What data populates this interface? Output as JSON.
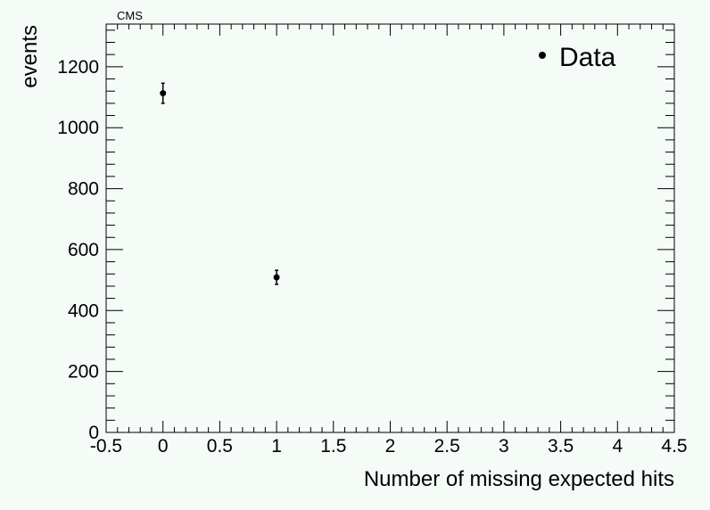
{
  "chart_data": {
    "type": "scatter",
    "title": "CMS",
    "xlabel": "Number of missing expected hits",
    "ylabel": "events",
    "xlim": [
      -0.5,
      4.5
    ],
    "ylim": [
      0,
      1340
    ],
    "x_ticks": [
      -0.5,
      0,
      0.5,
      1,
      1.5,
      2,
      2.5,
      3,
      3.5,
      4,
      4.5
    ],
    "x_tick_labels": [
      "-0.5",
      "0",
      "0.5",
      "1",
      "1.5",
      "2",
      "2.5",
      "3",
      "3.5",
      "4",
      "4.5"
    ],
    "y_ticks": [
      0,
      200,
      400,
      600,
      800,
      1000,
      1200
    ],
    "y_tick_labels": [
      "0",
      "200",
      "400",
      "600",
      "800",
      "1000",
      "1200"
    ],
    "grid": false,
    "legend_position": "top-right",
    "series": [
      {
        "name": "Data",
        "color": "#000000",
        "points": [
          {
            "x": 0,
            "y": 1113,
            "err": 33
          },
          {
            "x": 1,
            "y": 509,
            "err": 23
          }
        ]
      }
    ]
  }
}
